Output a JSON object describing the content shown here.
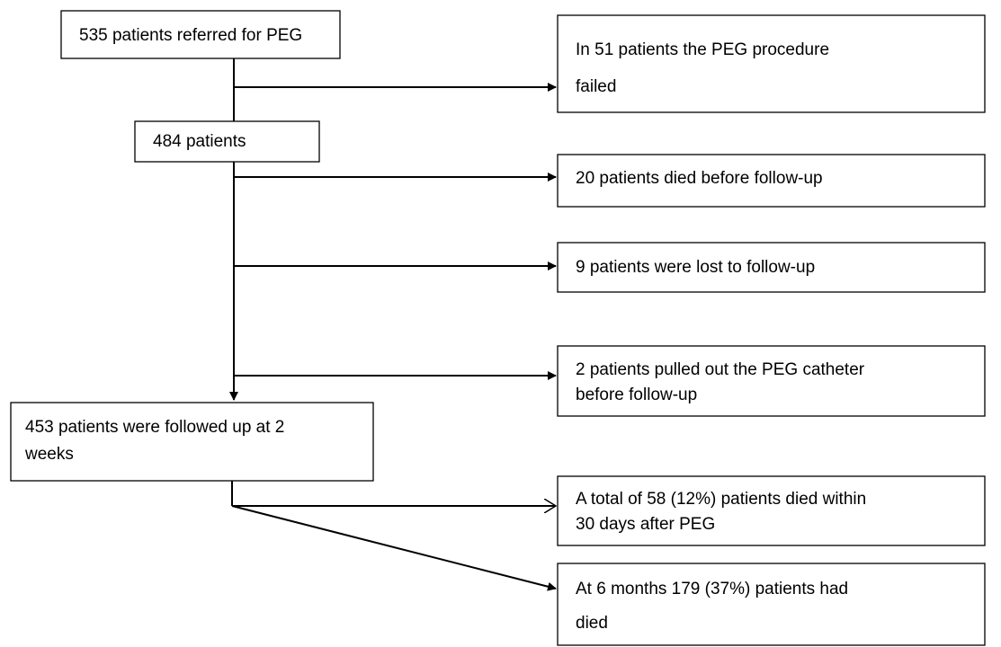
{
  "nodes": [
    {
      "lines": [
        "535 patients referred for PEG"
      ]
    },
    {
      "lines": [
        "In 51 patients the PEG procedure",
        "failed"
      ]
    },
    {
      "lines": [
        "484 patients"
      ]
    },
    {
      "lines": [
        "20 patients died before follow-up"
      ]
    },
    {
      "lines": [
        "9 patients were lost to follow-up"
      ]
    },
    {
      "lines": [
        "2 patients pulled out the PEG catheter",
        "before follow-up"
      ]
    },
    {
      "lines": [
        "453 patients were followed up at 2",
        "weeks"
      ]
    },
    {
      "lines": [
        "A total of 58 (12%) patients died within",
        "30 days after PEG"
      ]
    },
    {
      "lines": [
        "At 6 months 179 (37%) patients had",
        "died"
      ]
    }
  ]
}
